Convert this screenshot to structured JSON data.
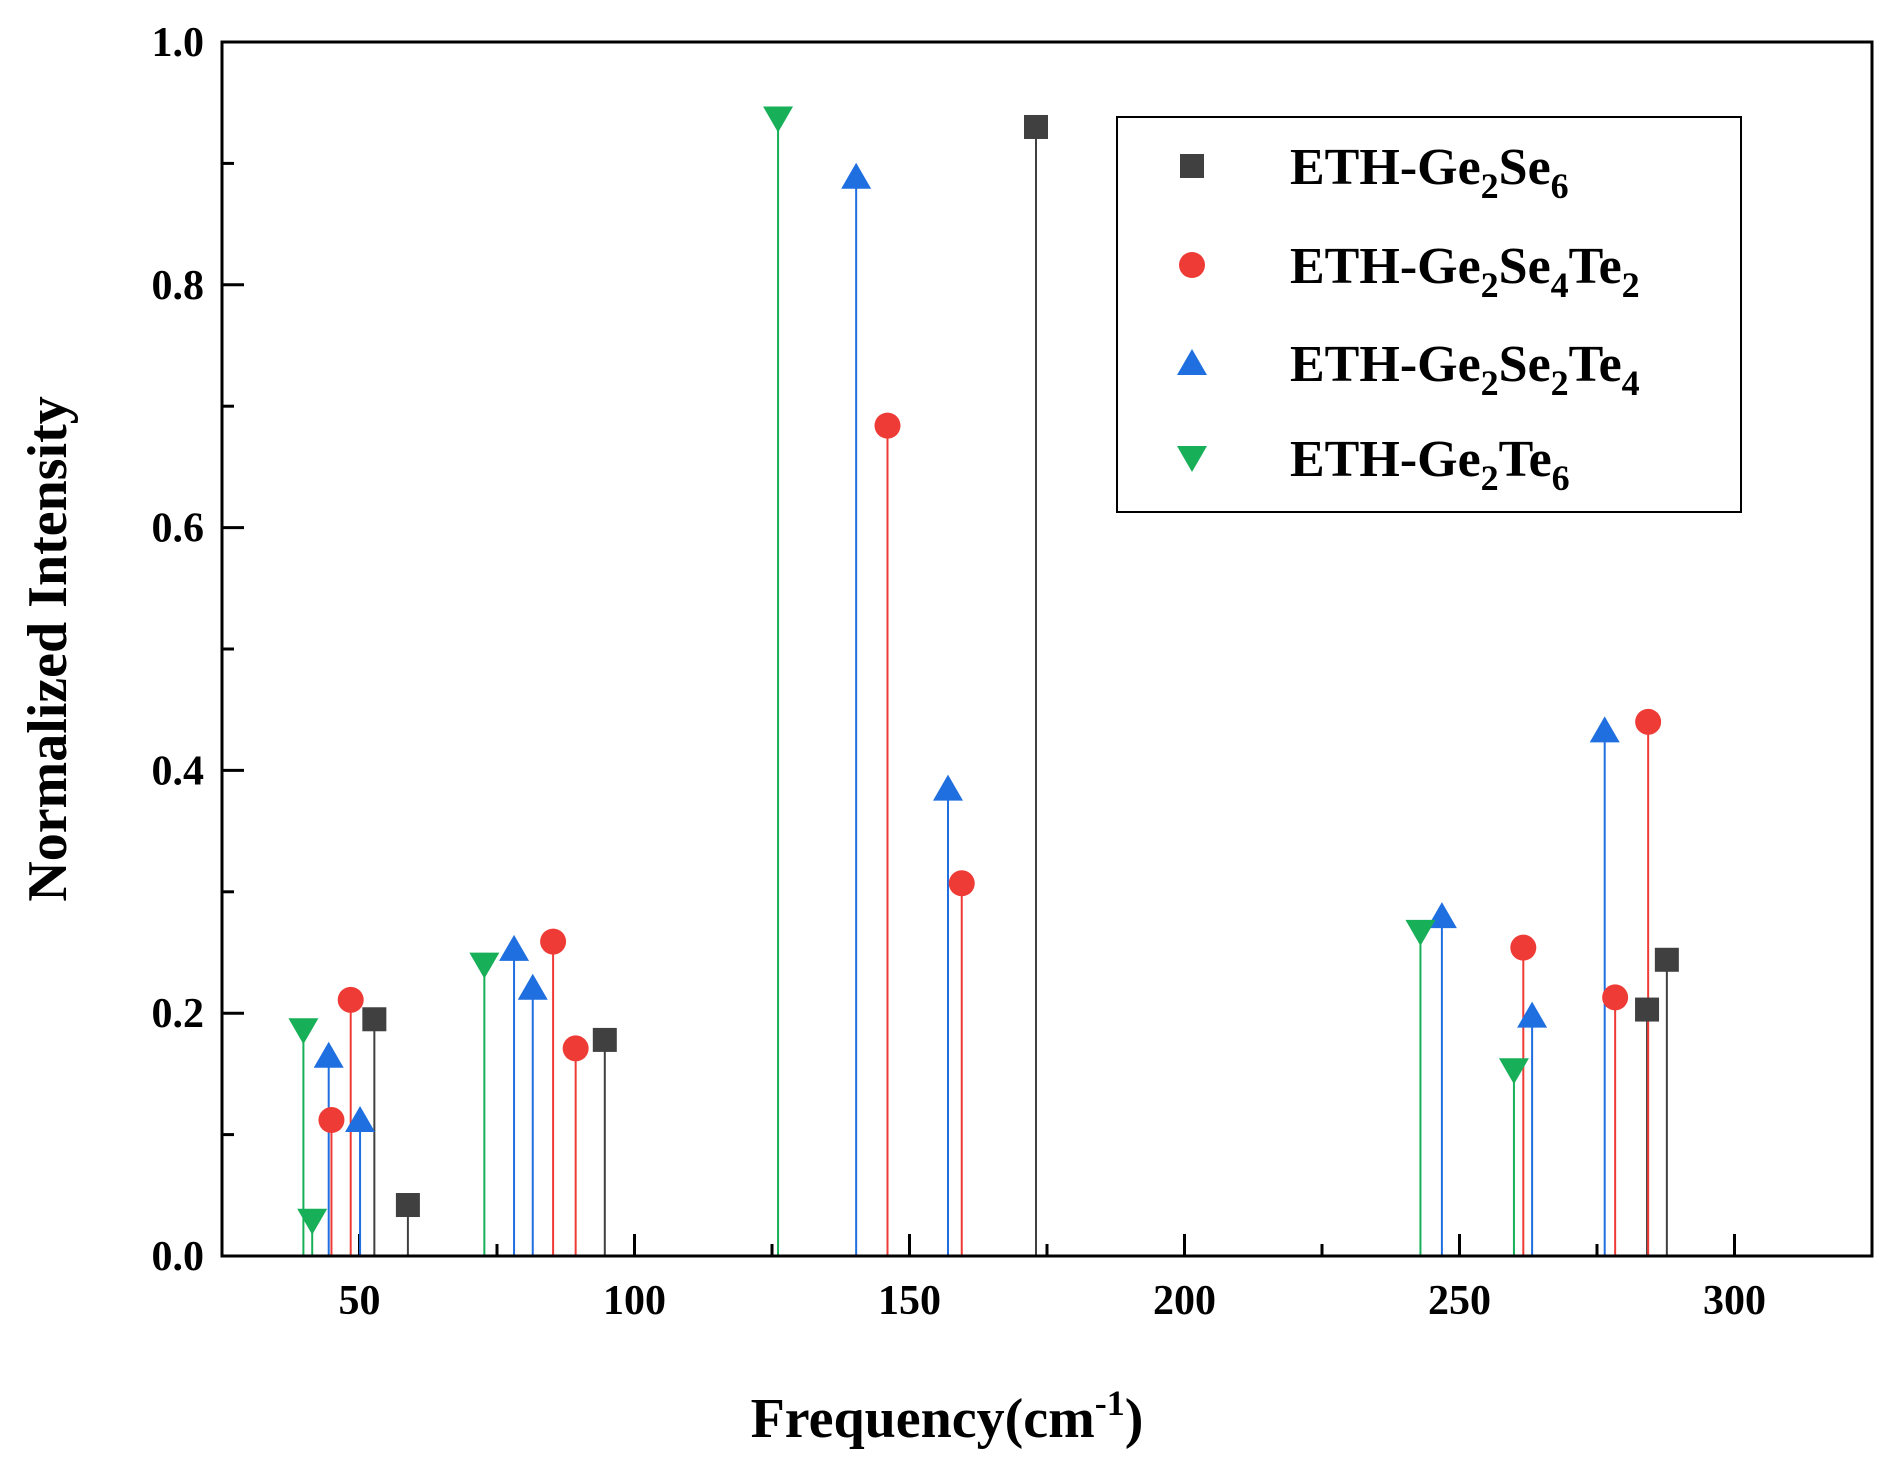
{
  "chart_data": {
    "type": "stem",
    "title": "",
    "xlabel": "Frequency(cm",
    "xlabel_sup": "-1",
    "xlabel_close": ")",
    "ylabel": "Normalized Intensity",
    "xlim": [
      25,
      325
    ],
    "ylim": [
      0,
      1.0
    ],
    "xticks": [
      50,
      100,
      150,
      200,
      250,
      300
    ],
    "xtick_labels": [
      "50",
      "100",
      "150",
      "200",
      "250",
      "300"
    ],
    "yticks": [
      0.0,
      0.2,
      0.4,
      0.6,
      0.8,
      1.0
    ],
    "ytick_labels": [
      "0.0",
      "0.2",
      "0.4",
      "0.6",
      "0.8",
      "1.0"
    ],
    "legend_position": "top-right",
    "series": [
      {
        "name": "ETH-Ge2Se6",
        "label_parts": [
          [
            "ETH-Ge",
            ""
          ],
          [
            "2",
            "sub"
          ],
          [
            "Se",
            ""
          ],
          [
            "6",
            "sub"
          ]
        ],
        "marker": "square",
        "color": "#404040",
        "x": [
          52.7,
          58.8,
          94.6,
          173.0,
          284.1,
          287.7
        ],
        "values": [
          0.195,
          0.042,
          0.178,
          0.93,
          0.203,
          0.244
        ]
      },
      {
        "name": "ETH-Ge2Se4Te2",
        "label_parts": [
          [
            "ETH-Ge",
            ""
          ],
          [
            "2",
            "sub"
          ],
          [
            "Se",
            ""
          ],
          [
            "4",
            "sub"
          ],
          [
            "Te",
            ""
          ],
          [
            "2",
            "sub"
          ]
        ],
        "marker": "circle",
        "color": "#ef3b36",
        "x": [
          44.9,
          48.4,
          85.2,
          89.3,
          146.0,
          159.5,
          261.6,
          278.3,
          284.3
        ],
        "values": [
          0.112,
          0.211,
          0.259,
          0.171,
          0.684,
          0.307,
          0.254,
          0.213,
          0.44
        ]
      },
      {
        "name": "ETH-Ge2Se2Te4",
        "label_parts": [
          [
            "ETH-Ge",
            ""
          ],
          [
            "2",
            "sub"
          ],
          [
            "Se",
            ""
          ],
          [
            "2",
            "sub"
          ],
          [
            "Te",
            ""
          ],
          [
            "4",
            "sub"
          ]
        ],
        "marker": "triangle-up",
        "color": "#1f6fe0",
        "x": [
          44.4,
          50.1,
          78.1,
          81.5,
          140.3,
          157.0,
          246.8,
          263.2,
          276.4
        ],
        "values": [
          0.165,
          0.112,
          0.253,
          0.221,
          0.889,
          0.385,
          0.28,
          0.198,
          0.433
        ]
      },
      {
        "name": "ETH-Ge2Te6",
        "label_parts": [
          [
            "ETH-Ge",
            ""
          ],
          [
            "2",
            "sub"
          ],
          [
            "Te",
            ""
          ],
          [
            "6",
            "sub"
          ]
        ],
        "marker": "triangle-down",
        "color": "#17b058",
        "x": [
          39.8,
          41.4,
          72.7,
          126.1,
          242.9,
          259.9
        ],
        "values": [
          0.186,
          0.029,
          0.24,
          0.937,
          0.267,
          0.153
        ]
      }
    ]
  }
}
